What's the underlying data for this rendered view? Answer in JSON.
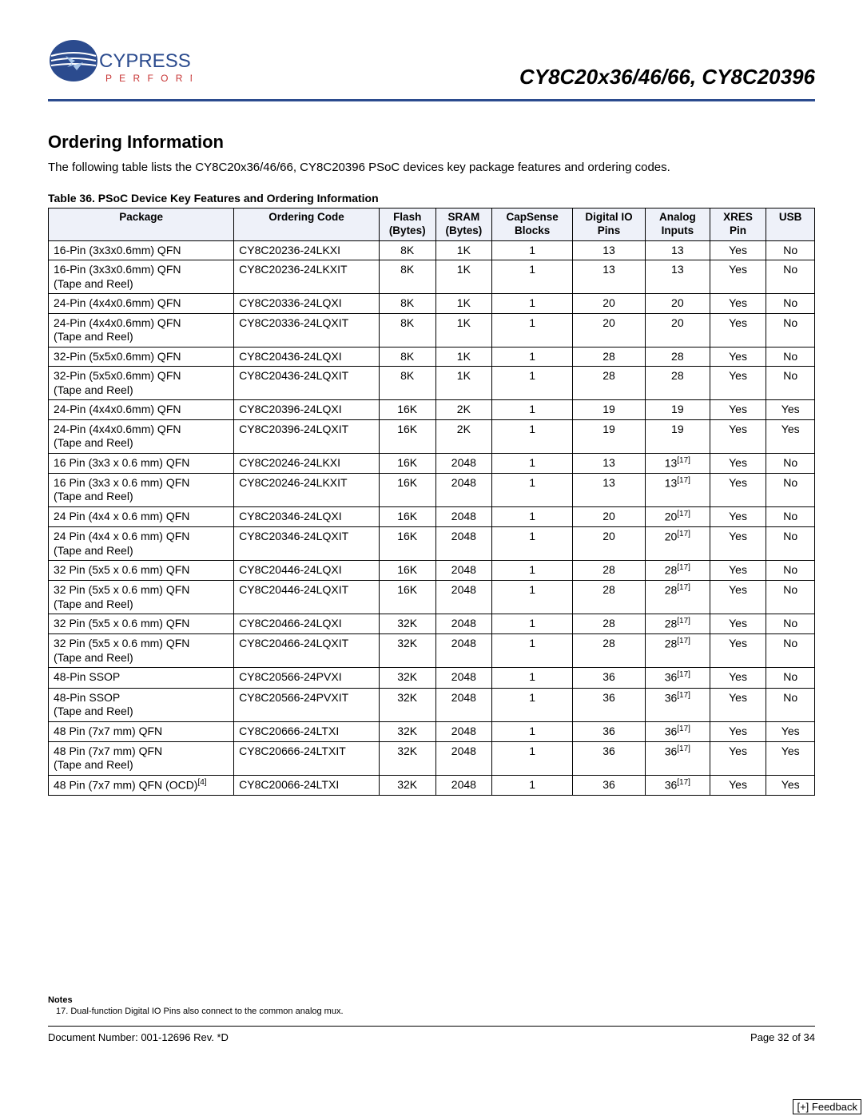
{
  "header": {
    "logo_top_text": "CYPRESS",
    "logo_sub_text": "P E R F O R M",
    "product_title": "CY8C20x36/46/66, CY8C20396",
    "hr_color": "#2b4b8e"
  },
  "section": {
    "heading": "Ordering Information",
    "intro": "The following table lists the CY8C20x36/46/66, CY8C20396 PSoC devices key package features and ordering codes.",
    "table_caption": "Table 36.   PSoC Device Key Features and Ordering Information"
  },
  "table": {
    "header_bg": "#eef1f9",
    "columns": [
      {
        "key": "package",
        "label": "Package",
        "align": "left"
      },
      {
        "key": "code",
        "label": "Ordering Code",
        "align": "left"
      },
      {
        "key": "flash",
        "label": "Flash (Bytes)",
        "align": "center"
      },
      {
        "key": "sram",
        "label": "SRAM (Bytes)",
        "align": "center"
      },
      {
        "key": "capsense",
        "label": "CapSense Blocks",
        "align": "center"
      },
      {
        "key": "dio",
        "label": "Digital IO Pins",
        "align": "center"
      },
      {
        "key": "analog",
        "label": "Analog Inputs",
        "align": "center"
      },
      {
        "key": "xres",
        "label": "XRES Pin",
        "align": "center"
      },
      {
        "key": "usb",
        "label": "USB",
        "align": "center"
      }
    ],
    "rows": [
      {
        "package": "16-Pin (3x3x0.6mm) QFN",
        "code": "CY8C20236-24LKXI",
        "flash": "8K",
        "sram": "1K",
        "capsense": "1",
        "dio": "13",
        "analog": "13",
        "analog_sup": "",
        "xres": "Yes",
        "usb": "No",
        "pkg_sup": ""
      },
      {
        "package": "16-Pin (3x3x0.6mm) QFN (Tape and Reel)",
        "code": "CY8C20236-24LKXIT",
        "flash": "8K",
        "sram": "1K",
        "capsense": "1",
        "dio": "13",
        "analog": "13",
        "analog_sup": "",
        "xres": "Yes",
        "usb": "No",
        "pkg_sup": ""
      },
      {
        "package": "24-Pin (4x4x0.6mm) QFN",
        "code": "CY8C20336-24LQXI",
        "flash": "8K",
        "sram": "1K",
        "capsense": "1",
        "dio": "20",
        "analog": "20",
        "analog_sup": "",
        "xres": "Yes",
        "usb": "No",
        "pkg_sup": ""
      },
      {
        "package": "24-Pin (4x4x0.6mm) QFN (Tape and Reel)",
        "code": "CY8C20336-24LQXIT",
        "flash": "8K",
        "sram": "1K",
        "capsense": "1",
        "dio": "20",
        "analog": "20",
        "analog_sup": "",
        "xres": "Yes",
        "usb": "No",
        "pkg_sup": ""
      },
      {
        "package": "32-Pin (5x5x0.6mm) QFN",
        "code": "CY8C20436-24LQXI",
        "flash": "8K",
        "sram": "1K",
        "capsense": "1",
        "dio": "28",
        "analog": "28",
        "analog_sup": "",
        "xres": "Yes",
        "usb": "No",
        "pkg_sup": ""
      },
      {
        "package": "32-Pin (5x5x0.6mm) QFN (Tape and Reel)",
        "code": "CY8C20436-24LQXIT",
        "flash": "8K",
        "sram": "1K",
        "capsense": "1",
        "dio": "28",
        "analog": "28",
        "analog_sup": "",
        "xres": "Yes",
        "usb": "No",
        "pkg_sup": ""
      },
      {
        "package": "24-Pin (4x4x0.6mm) QFN",
        "code": "CY8C20396-24LQXI",
        "flash": "16K",
        "sram": "2K",
        "capsense": "1",
        "dio": "19",
        "analog": "19",
        "analog_sup": "",
        "xres": "Yes",
        "usb": "Yes",
        "pkg_sup": ""
      },
      {
        "package": "24-Pin (4x4x0.6mm) QFN (Tape and Reel)",
        "code": "CY8C20396-24LQXIT",
        "flash": "16K",
        "sram": "2K",
        "capsense": "1",
        "dio": "19",
        "analog": "19",
        "analog_sup": "",
        "xres": "Yes",
        "usb": "Yes",
        "pkg_sup": ""
      },
      {
        "package": "16 Pin (3x3 x 0.6 mm) QFN",
        "code": "CY8C20246-24LKXI",
        "flash": "16K",
        "sram": "2048",
        "capsense": "1",
        "dio": "13",
        "analog": "13",
        "analog_sup": "[17]",
        "xres": "Yes",
        "usb": "No",
        "pkg_sup": ""
      },
      {
        "package": "16 Pin (3x3 x 0.6 mm) QFN (Tape and Reel)",
        "code": "CY8C20246-24LKXIT",
        "flash": "16K",
        "sram": "2048",
        "capsense": "1",
        "dio": "13",
        "analog": "13",
        "analog_sup": "[17]",
        "xres": "Yes",
        "usb": "No",
        "pkg_sup": ""
      },
      {
        "package": "24 Pin (4x4 x 0.6 mm) QFN",
        "code": "CY8C20346-24LQXI",
        "flash": "16K",
        "sram": "2048",
        "capsense": "1",
        "dio": "20",
        "analog": "20",
        "analog_sup": "[17]",
        "xres": "Yes",
        "usb": "No",
        "pkg_sup": ""
      },
      {
        "package": "24 Pin (4x4 x 0.6 mm) QFN (Tape and Reel)",
        "code": "CY8C20346-24LQXIT",
        "flash": "16K",
        "sram": "2048",
        "capsense": "1",
        "dio": "20",
        "analog": "20",
        "analog_sup": "[17]",
        "xres": "Yes",
        "usb": "No",
        "pkg_sup": ""
      },
      {
        "package": "32 Pin (5x5 x 0.6 mm) QFN",
        "code": "CY8C20446-24LQXI",
        "flash": "16K",
        "sram": "2048",
        "capsense": "1",
        "dio": "28",
        "analog": "28",
        "analog_sup": "[17]",
        "xres": "Yes",
        "usb": "No",
        "pkg_sup": ""
      },
      {
        "package": "32 Pin (5x5 x 0.6 mm) QFN (Tape and Reel)",
        "code": "CY8C20446-24LQXIT",
        "flash": "16K",
        "sram": "2048",
        "capsense": "1",
        "dio": "28",
        "analog": "28",
        "analog_sup": "[17]",
        "xres": "Yes",
        "usb": "No",
        "pkg_sup": ""
      },
      {
        "package": "32 Pin (5x5 x 0.6 mm) QFN",
        "code": "CY8C20466-24LQXI",
        "flash": "32K",
        "sram": "2048",
        "capsense": "1",
        "dio": "28",
        "analog": "28",
        "analog_sup": "[17]",
        "xres": "Yes",
        "usb": "No",
        "pkg_sup": ""
      },
      {
        "package": "32 Pin (5x5 x 0.6 mm) QFN (Tape and Reel)",
        "code": "CY8C20466-24LQXIT",
        "flash": "32K",
        "sram": "2048",
        "capsense": "1",
        "dio": "28",
        "analog": "28",
        "analog_sup": "[17]",
        "xres": "Yes",
        "usb": "No",
        "pkg_sup": ""
      },
      {
        "package": "48-Pin SSOP",
        "code": "CY8C20566-24PVXI",
        "flash": "32K",
        "sram": "2048",
        "capsense": "1",
        "dio": "36",
        "analog": "36",
        "analog_sup": "[17]",
        "xres": "Yes",
        "usb": "No",
        "pkg_sup": ""
      },
      {
        "package": "48-Pin SSOP (Tape and Reel)",
        "code": "CY8C20566-24PVXIT",
        "flash": "32K",
        "sram": "2048",
        "capsense": "1",
        "dio": "36",
        "analog": "36",
        "analog_sup": "[17]",
        "xres": "Yes",
        "usb": "No",
        "pkg_sup": ""
      },
      {
        "package": "48 Pin (7x7 mm) QFN",
        "code": "CY8C20666-24LTXI",
        "flash": "32K",
        "sram": "2048",
        "capsense": "1",
        "dio": "36",
        "analog": "36",
        "analog_sup": "[17]",
        "xres": "Yes",
        "usb": "Yes",
        "pkg_sup": ""
      },
      {
        "package": "48 Pin (7x7 mm) QFN (Tape and Reel)",
        "code": "CY8C20666-24LTXIT",
        "flash": "32K",
        "sram": "2048",
        "capsense": "1",
        "dio": "36",
        "analog": "36",
        "analog_sup": "[17]",
        "xres": "Yes",
        "usb": "Yes",
        "pkg_sup": ""
      },
      {
        "package": "48 Pin (7x7 mm) QFN (OCD)",
        "code": "CY8C20066-24LTXI",
        "flash": "32K",
        "sram": "2048",
        "capsense": "1",
        "dio": "36",
        "analog": "36",
        "analog_sup": "[17]",
        "xres": "Yes",
        "usb": "Yes",
        "pkg_sup": "[4]"
      }
    ]
  },
  "notes": {
    "title": "Notes",
    "items": [
      {
        "num": "17.",
        "text": "Dual-function Digital IO Pins also connect to the common analog mux."
      }
    ]
  },
  "footer": {
    "doc_number": "Document Number: 001-12696  Rev. *D",
    "page": "Page 32 of 34",
    "feedback": "[+] Feedback"
  }
}
